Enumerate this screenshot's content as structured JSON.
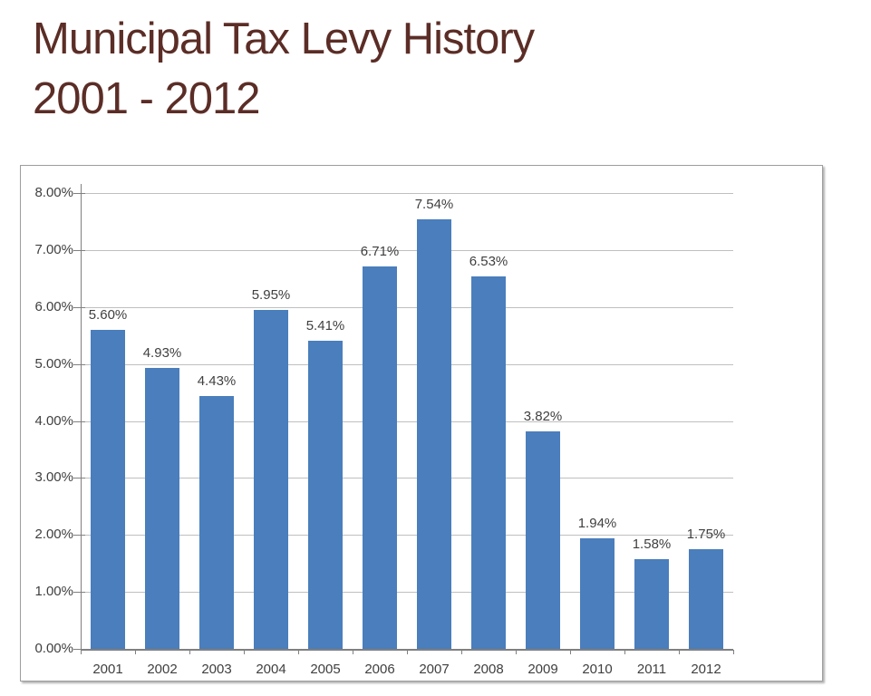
{
  "title": {
    "line1": "Municipal Tax Levy History",
    "line2": "2001 - 2012"
  },
  "chart_data": {
    "type": "bar",
    "title": "Municipal Tax Levy History 2001 - 2012",
    "categories": [
      "2001",
      "2002",
      "2003",
      "2004",
      "2005",
      "2006",
      "2007",
      "2008",
      "2009",
      "2010",
      "2011",
      "2012"
    ],
    "values": [
      5.6,
      4.93,
      4.43,
      5.95,
      5.41,
      6.71,
      7.54,
      6.53,
      3.82,
      1.94,
      1.58,
      1.75
    ],
    "value_labels": [
      "5.60%",
      "4.93%",
      "4.43%",
      "5.95%",
      "5.41%",
      "6.71%",
      "7.54%",
      "6.53%",
      "3.82%",
      "1.94%",
      "1.58%",
      "1.75%"
    ],
    "xlabel": "",
    "ylabel": "",
    "ylim": [
      0,
      8
    ],
    "y_ticks": [
      "0.00%",
      "1.00%",
      "2.00%",
      "3.00%",
      "4.00%",
      "5.00%",
      "6.00%",
      "7.00%",
      "8.00%"
    ],
    "grid": true,
    "legend": "none"
  },
  "colors": {
    "title": "#5B2D26",
    "bar": "#4A7EBC",
    "gridline": "#BFBFBF",
    "axis": "#808080",
    "label_text": "#3F3F3F",
    "frame_border": "#9E9E9E"
  }
}
